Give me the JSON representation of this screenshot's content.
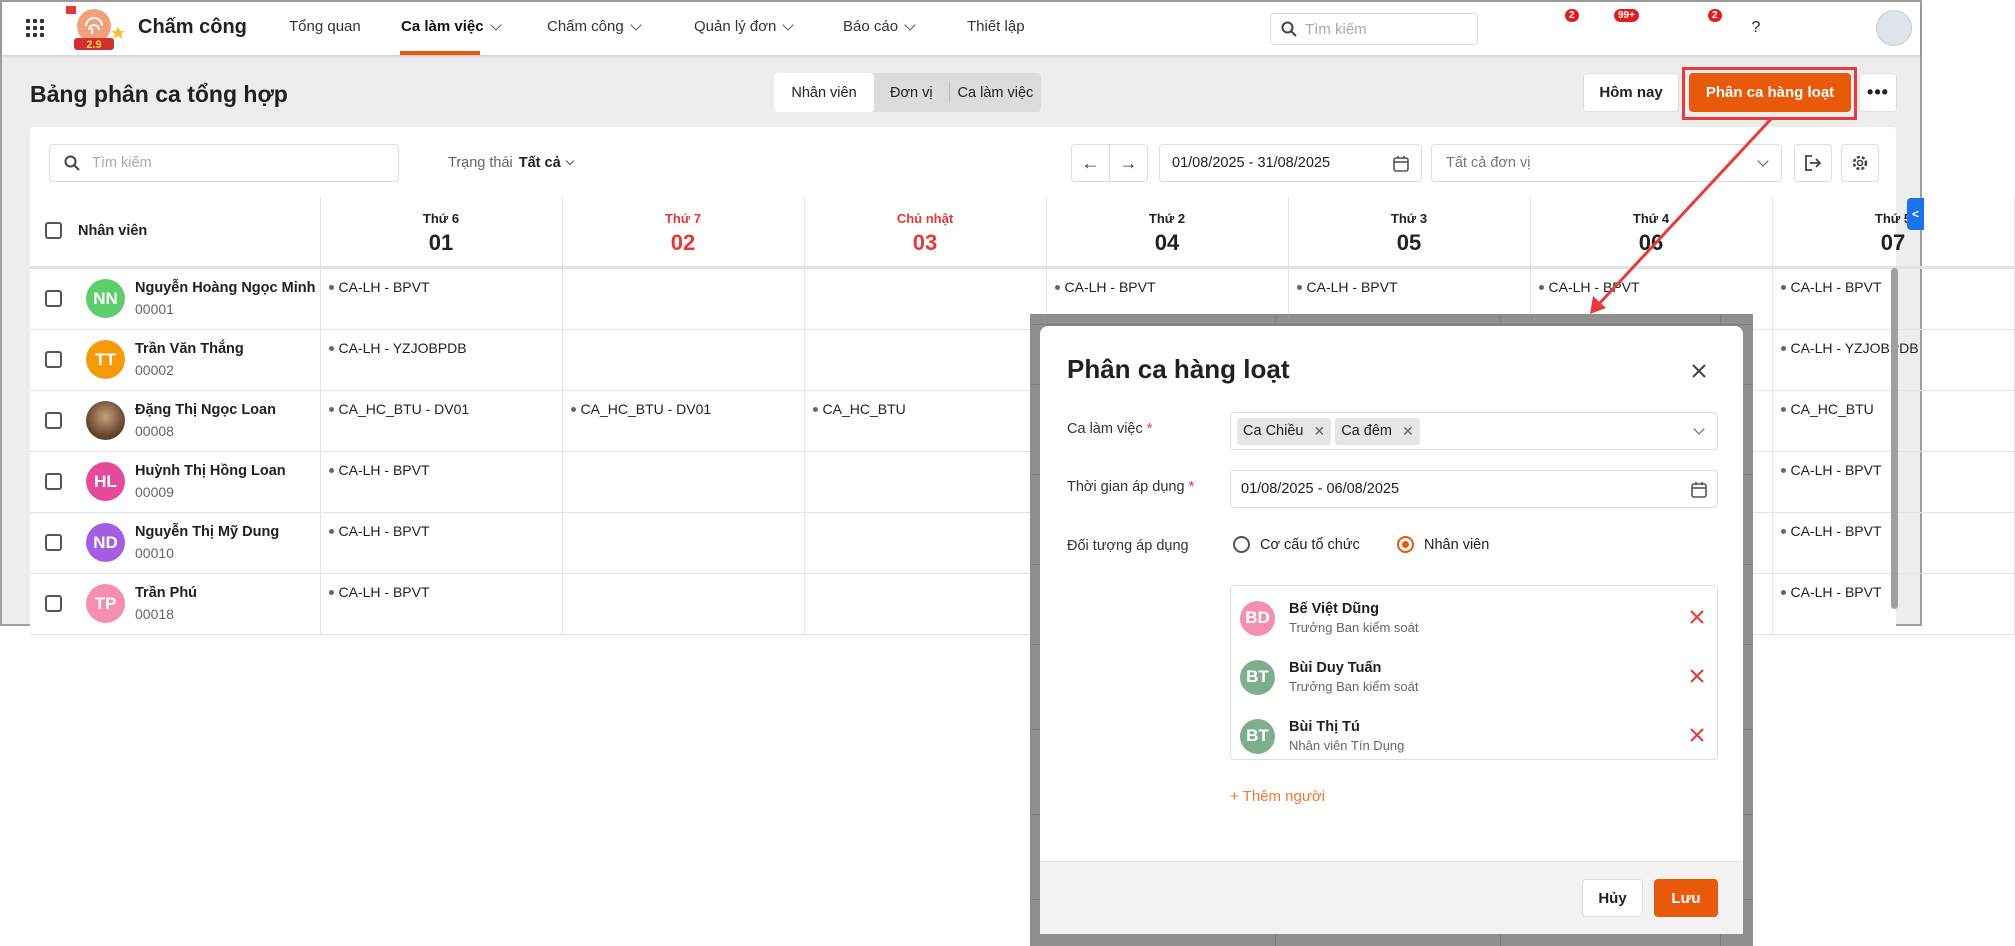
{
  "app": {
    "title": "Chấm công",
    "logo_text": "2.9"
  },
  "nav": [
    {
      "label": "Tổng quan",
      "dropdown": false
    },
    {
      "label": "Ca làm việc",
      "dropdown": true,
      "active": true
    },
    {
      "label": "Chấm công",
      "dropdown": true
    },
    {
      "label": "Quản lý đơn",
      "dropdown": true
    },
    {
      "label": "Báo cáo",
      "dropdown": true
    },
    {
      "label": "Thiết lập",
      "dropdown": false
    }
  ],
  "top_search": {
    "placeholder": "Tìm kiếm"
  },
  "top_icons": [
    {
      "icon": "cart-icon",
      "badge": "2"
    },
    {
      "icon": "megaphone-icon",
      "badge": "99+"
    },
    {
      "icon": "chat-icon",
      "badge": ""
    },
    {
      "icon": "bell-icon",
      "badge": "2"
    },
    {
      "icon": "help-icon",
      "badge": ""
    },
    {
      "icon": "more-circle-icon",
      "badge": ""
    },
    {
      "icon": "lightbulb-book-icon",
      "badge": ""
    }
  ],
  "colors": {
    "accent": "#e8590c",
    "weekend": "#e53935",
    "highlight": "#e83b3b",
    "side_tab": "#1a73e8"
  },
  "page": {
    "title": "Bảng phân ca tổng hợp",
    "view_tabs": [
      "Nhân viên",
      "Đơn vị",
      "Ca làm việc"
    ],
    "active_view": "Nhân viên",
    "today_label": "Hôm nay",
    "bulk_label": "Phân ca hàng loạt",
    "more_label": "•••"
  },
  "filters": {
    "search_placeholder": "Tìm kiếm",
    "status_label": "Trạng thái",
    "status_value": "Tất cả",
    "date_range": "01/08/2025 - 31/08/2025",
    "unit_placeholder": "Tất cả đơn vị"
  },
  "table": {
    "employee_header": "Nhân viên",
    "days": [
      {
        "weekday": "Thứ 6",
        "day": "01",
        "weekend": false
      },
      {
        "weekday": "Thứ 7",
        "day": "02",
        "weekend": true
      },
      {
        "weekday": "Chủ nhật",
        "day": "03",
        "weekend": true
      },
      {
        "weekday": "Thứ 2",
        "day": "04",
        "weekend": false
      },
      {
        "weekday": "Thứ 3",
        "day": "05",
        "weekend": false
      },
      {
        "weekday": "Thứ 4",
        "day": "06",
        "weekend": false
      },
      {
        "weekday": "Thứ 5",
        "day": "07",
        "weekend": false
      }
    ],
    "rows": [
      {
        "name": "Nguyễn Hoàng Ngọc Minh",
        "code": "00001",
        "initials": "NN",
        "color": "#5ccf6c",
        "shifts": [
          "CA-LH - BPVT",
          "",
          "",
          "CA-LH - BPVT",
          "CA-LH - BPVT",
          "CA-LH - BPVT",
          "CA-LH - BPVT"
        ]
      },
      {
        "name": "Trần Văn Thắng",
        "code": "00002",
        "initials": "TT",
        "color": "#f59b0b",
        "shifts": [
          "CA-LH - YZJOBPDB",
          "",
          "",
          "",
          "",
          "",
          "CA-LH - YZJOBPDB"
        ]
      },
      {
        "name": "Đặng Thị Ngọc Loan",
        "code": "00008",
        "initials": "",
        "color": "#6b4a32",
        "shifts": [
          "CA_HC_BTU - DV01",
          "CA_HC_BTU - DV01",
          "CA_HC_BTU",
          "",
          "",
          "",
          "CA_HC_BTU"
        ]
      },
      {
        "name": "Huỳnh Thị Hồng Loan",
        "code": "00009",
        "initials": "HL",
        "color": "#e64a9b",
        "shifts": [
          "CA-LH - BPVT",
          "",
          "",
          "",
          "",
          "",
          "CA-LH - BPVT"
        ]
      },
      {
        "name": "Nguyễn Thị Mỹ Dung",
        "code": "00010",
        "initials": "ND",
        "color": "#a45fe0",
        "shifts": [
          "CA-LH - BPVT",
          "",
          "",
          "",
          "",
          "",
          "CA-LH - BPVT"
        ]
      },
      {
        "name": "Trần Phú",
        "code": "00018",
        "initials": "TP",
        "color": "#f48fb1",
        "shifts": [
          "CA-LH - BPVT",
          "",
          "",
          "",
          "",
          "",
          "CA-LH - BPVT"
        ]
      }
    ]
  },
  "dialog": {
    "title": "Phân ca hàng loạt",
    "shift_label": "Ca làm việc",
    "shift_tags": [
      "Ca Chiều",
      "Ca đêm"
    ],
    "period_label": "Thời gian áp dụng",
    "period_value": "01/08/2025 - 06/08/2025",
    "target_label": "Đối tượng áp dụng",
    "target_options": [
      "Cơ cấu tổ chức",
      "Nhân viên"
    ],
    "target_selected": "Nhân viên",
    "people": [
      {
        "initials": "BD",
        "name": "Bế Việt Dũng",
        "role": "Trưởng Ban kiểm soát",
        "color": "#f48fb1"
      },
      {
        "initials": "BT",
        "name": "Bùi Duy Tuấn",
        "role": "Trưởng Ban kiểm soát",
        "color": "#7fae8e"
      },
      {
        "initials": "BT",
        "name": "Bùi Thị Tú",
        "role": "Nhân viên Tín Dụng",
        "color": "#7fae8e"
      }
    ],
    "add_person": "+ Thêm người",
    "cancel": "Hủy",
    "save": "Lưu"
  }
}
